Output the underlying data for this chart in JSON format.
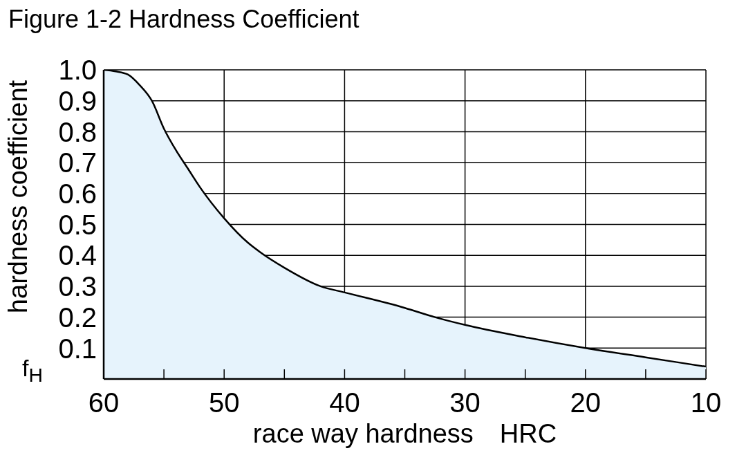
{
  "chart_data": {
    "type": "area",
    "title": "Figure 1-2 Hardness Coefficient",
    "xlabel": "race way hardness　HRC",
    "ylabel": "hardness coefficient",
    "annotations": [
      "f$_{H}$"
    ],
    "x": [
      60,
      59,
      58,
      57,
      56,
      55,
      54,
      53,
      52,
      50,
      48,
      47,
      45,
      42,
      40,
      35,
      32.5,
      30,
      25,
      20,
      15,
      10
    ],
    "series": [
      {
        "color": "#000000",
        "values": [
          1.0,
          0.995,
          0.985,
          0.95,
          0.9,
          0.81,
          0.74,
          0.68,
          0.62,
          0.52,
          0.44,
          0.41,
          0.36,
          0.3,
          0.28,
          0.23,
          0.2,
          0.175,
          0.135,
          0.1,
          0.07,
          0.04
        ]
      }
    ],
    "xlim": [
      60,
      10
    ],
    "xticks": [
      60,
      {
        "value": 55,
        "label": null
      },
      50,
      {
        "value": 45,
        "label": null
      },
      40,
      {
        "value": 35,
        "label": null
      },
      30,
      {
        "value": 25,
        "label": null
      },
      20,
      {
        "value": 15,
        "label": null
      },
      10
    ],
    "ylim": [
      0,
      1.0
    ],
    "yticks": [
      {
        "value": 0,
        "label": null
      },
      0.1,
      0.2,
      0.3,
      0.4,
      0.5,
      0.6,
      0.7,
      0.8,
      0.9,
      {
        "value": 1.0,
        "label": "1.0"
      }
    ],
    "grid": true
  }
}
